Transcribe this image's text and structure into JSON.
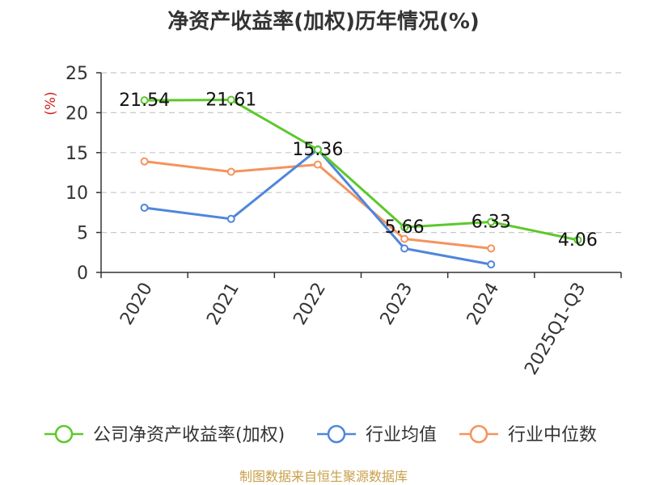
{
  "chart_data": {
    "type": "line",
    "title": "净资产收益率(加权)历年情况(%)",
    "ylabel": "(%)",
    "ylim": [
      0,
      25
    ],
    "yticks": [
      0,
      5,
      10,
      15,
      20,
      25
    ],
    "grid": true,
    "categories": [
      "2020",
      "2021",
      "2022",
      "2023",
      "2024",
      "2025Q1-Q3"
    ],
    "series": [
      {
        "name": "公司净资产收益率(加权)",
        "color": "#5cc82b",
        "values": [
          21.54,
          21.61,
          15.36,
          5.66,
          6.33,
          4.06
        ],
        "labels": [
          "21.54",
          "21.61",
          "15.36",
          "5.66",
          "6.33",
          "4.06"
        ]
      },
      {
        "name": "行业均值",
        "color": "#4f86dc",
        "values": [
          8.1,
          6.7,
          15.4,
          3.0,
          1.0,
          null
        ]
      },
      {
        "name": "行业中位数",
        "color": "#f4935e",
        "values": [
          13.9,
          12.6,
          13.5,
          4.2,
          3.0,
          null
        ]
      }
    ],
    "legend_position": "bottom",
    "source": "制图数据来自恒生聚源数据库"
  }
}
